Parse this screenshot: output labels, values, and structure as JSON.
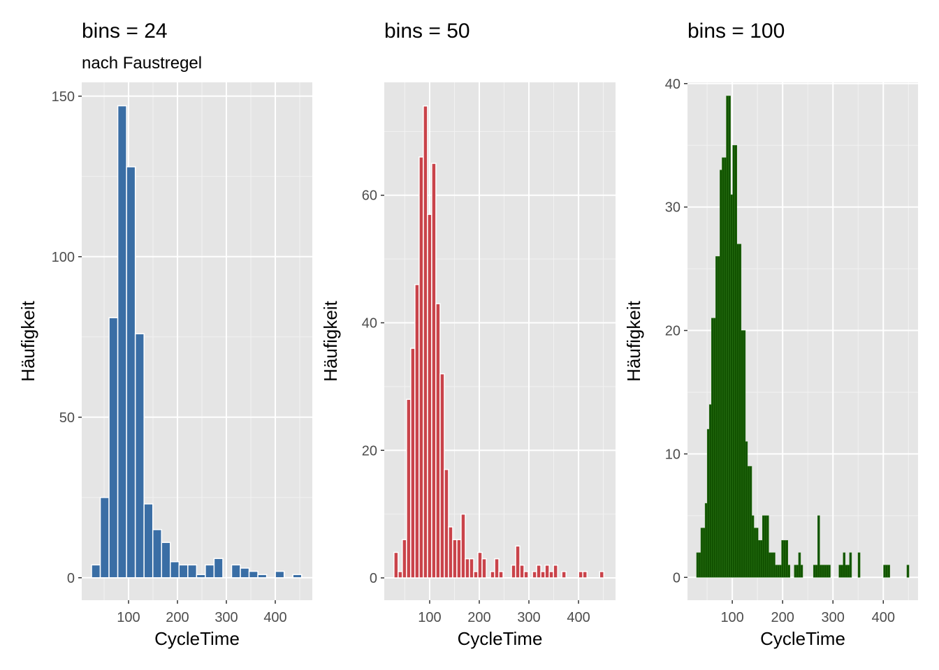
{
  "chart_data": [
    {
      "type": "bar",
      "title": "bins = 24",
      "subtitle": "nach Faustregel",
      "xlabel": "CycleTime",
      "ylabel": "Häufigkeit",
      "bins": 24,
      "bin_start": 24.3,
      "bin_width": 17.9,
      "values": [
        4,
        25,
        81,
        147,
        128,
        76,
        23,
        15,
        11,
        5,
        4,
        4,
        1,
        4,
        6,
        0,
        4,
        3,
        2,
        1,
        0,
        2,
        0,
        1
      ],
      "xlim": [
        4.3,
        475.7
      ],
      "ylim": [
        -7,
        154.3
      ],
      "xticks": [
        100,
        200,
        300,
        400
      ],
      "yticks": [
        0,
        50,
        100,
        150
      ],
      "fill": "#3a6ea5",
      "outline": "#ffffff",
      "grid": true
    },
    {
      "type": "bar",
      "title": "bins = 50",
      "xlabel": "CycleTime",
      "ylabel": "Häufigkeit",
      "bins": 50,
      "bin_start": 28,
      "bin_width": 8.46,
      "values": [
        4,
        1,
        6,
        28,
        36,
        46,
        66,
        74,
        57,
        65,
        43,
        32,
        17,
        8,
        6,
        6,
        10,
        3,
        3,
        1,
        4,
        3,
        0,
        1,
        3,
        1,
        0,
        0,
        2,
        5,
        2,
        1,
        0,
        1,
        2,
        1,
        2,
        1,
        2,
        0,
        1,
        0,
        0,
        0,
        1,
        1,
        0,
        0,
        0,
        1
      ],
      "xlim": [
        8.5,
        474.6
      ],
      "ylim": [
        -3.5,
        77.7
      ],
      "xticks": [
        100,
        200,
        300,
        400
      ],
      "yticks": [
        0,
        20,
        40,
        60
      ],
      "fill": "#c9434a",
      "outline": "#ffffff",
      "grid": true
    },
    {
      "type": "bar",
      "title": "bins = 100",
      "xlabel": "CycleTime",
      "ylabel": "Häufigkeit",
      "bins": 100,
      "bin_start": 29,
      "bin_width": 4.22,
      "values": [
        2,
        2,
        4,
        4,
        6,
        12,
        14,
        21,
        21,
        26,
        26,
        33,
        34,
        34,
        39,
        39,
        31,
        35,
        35,
        27,
        27,
        20,
        20,
        11,
        9,
        9,
        5,
        4,
        4,
        3,
        3,
        5,
        5,
        5,
        2,
        2,
        2,
        1,
        1,
        1,
        3,
        3,
        3,
        1,
        0,
        0,
        1,
        1,
        2,
        1,
        0,
        0,
        0,
        0,
        0,
        1,
        1,
        5,
        1,
        1,
        1,
        1,
        1,
        0,
        0,
        0,
        0,
        1,
        1,
        2,
        1,
        1,
        2,
        0,
        0,
        0,
        2,
        0,
        0,
        0,
        0,
        0,
        0,
        0,
        0,
        0,
        0,
        0,
        1,
        1,
        1,
        0,
        0,
        0,
        0,
        0,
        0,
        0,
        0,
        1
      ],
      "xlim": [
        11,
        469
      ],
      "ylim": [
        -1.85,
        40.1
      ],
      "xticks": [
        100,
        200,
        300,
        400
      ],
      "yticks": [
        0,
        10,
        20,
        30,
        40
      ],
      "fill": "#115200",
      "outline": "#2f7a1a",
      "grid": true
    }
  ]
}
